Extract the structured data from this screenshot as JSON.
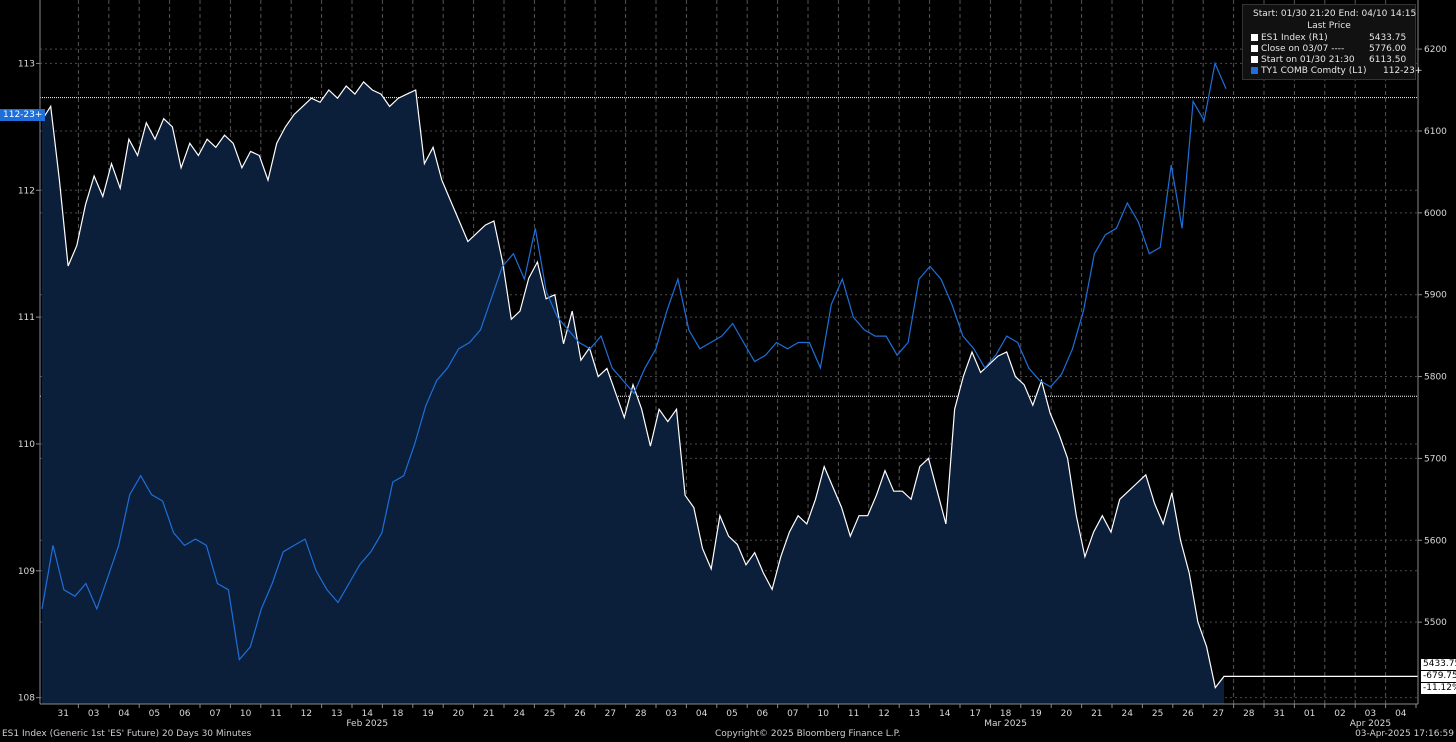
{
  "footer": {
    "left": "ES1 Index (Generic 1st 'ES' Future) 20 Days 30 Minutes",
    "center": "Copyright© 2025 Bloomberg Finance L.P.",
    "right": "03-Apr-2025 17:16:59"
  },
  "legend": {
    "header": "Start: 01/30 21:20 End: 04/10 14:15",
    "subheader": "Last Price",
    "rows": [
      {
        "label": "ES1 Index  (R1)",
        "value": "5433.75",
        "color": "#ffffff"
      },
      {
        "label": "Close on 03/07 ----",
        "value": "5776.00",
        "color": "#ffffff"
      },
      {
        "label": "Start on 01/30 21:30",
        "value": "6113.50",
        "color": "#ffffff"
      },
      {
        "label": "TY1 COMB Comdty  (L1)",
        "value": "112-23+",
        "color": "#1e6fd9"
      }
    ]
  },
  "tags": {
    "left_last": "112-23+",
    "right_last": "5433.75",
    "right_change": "-679.75",
    "right_pct": "-11.12%"
  },
  "colors": {
    "background": "#000000",
    "area": "#0b1e3a",
    "es_line": "#ffffff",
    "ty_line": "#1e6fd9",
    "grid": "#555555"
  },
  "chart_data": {
    "type": "line",
    "y_left_axis": {
      "ticks": [
        "108",
        "109",
        "110",
        "111",
        "112",
        "113"
      ],
      "range": [
        107.95,
        113.5
      ]
    },
    "y_right_axis": {
      "ticks": [
        "5500",
        "5600",
        "5700",
        "5800",
        "5900",
        "6000",
        "6100",
        "6200"
      ],
      "range": [
        5400,
        6260
      ]
    },
    "x_day_labels": [
      "31",
      "03",
      "04",
      "05",
      "06",
      "07",
      "10",
      "11",
      "12",
      "13",
      "14",
      "18",
      "19",
      "20",
      "21",
      "24",
      "25",
      "26",
      "27",
      "28",
      "03",
      "04",
      "05",
      "06",
      "07",
      "10",
      "11",
      "12",
      "13",
      "14",
      "17",
      "18",
      "19",
      "20",
      "21",
      "24",
      "25",
      "26",
      "27",
      "28",
      "31",
      "01",
      "02",
      "03",
      "04"
    ],
    "x_month_labels": [
      {
        "label": "Feb 2025",
        "after_day_index": 10
      },
      {
        "label": "Mar 2025",
        "after_day_index": 31
      },
      {
        "label": "Apr 2025",
        "after_day_index": 43
      }
    ],
    "reference_lines": [
      {
        "axis": "left",
        "value": "112-23+",
        "numeric": 112.73
      },
      {
        "axis": "right",
        "name": "Close on 03/07",
        "value": 5776.0
      }
    ],
    "series": [
      {
        "name": "ES1 Index",
        "axis": "right",
        "style": "area",
        "values": [
          6113.5,
          6130,
          6040,
          5935,
          5960,
          6010,
          6045,
          6020,
          6060,
          6030,
          6090,
          6070,
          6110,
          6090,
          6115,
          6105,
          6055,
          6085,
          6070,
          6090,
          6080,
          6095,
          6085,
          6055,
          6075,
          6070,
          6040,
          6085,
          6105,
          6120,
          6130,
          6140,
          6135,
          6150,
          6140,
          6155,
          6145,
          6160,
          6150,
          6145,
          6130,
          6140,
          6145,
          6150,
          6060,
          6080,
          6040,
          6015,
          5990,
          5965,
          5975,
          5985,
          5990,
          5940,
          5870,
          5880,
          5920,
          5940,
          5895,
          5900,
          5840,
          5880,
          5820,
          5835,
          5800,
          5810,
          5780,
          5750,
          5790,
          5760,
          5715,
          5760,
          5745,
          5760,
          5655,
          5640,
          5590,
          5565,
          5630,
          5605,
          5595,
          5570,
          5585,
          5560,
          5540,
          5580,
          5610,
          5630,
          5620,
          5650,
          5690,
          5665,
          5640,
          5605,
          5630,
          5630,
          5655,
          5685,
          5660,
          5660,
          5650,
          5690,
          5700,
          5660,
          5620,
          5760,
          5800,
          5830,
          5805,
          5815,
          5825,
          5830,
          5800,
          5790,
          5765,
          5795,
          5755,
          5730,
          5700,
          5630,
          5580,
          5610,
          5630,
          5610,
          5650,
          5660,
          5670,
          5680,
          5645,
          5620,
          5658,
          5600,
          5560,
          5500,
          5470,
          5420,
          5433.75
        ]
      },
      {
        "name": "TY1 COMB Comdty",
        "axis": "left",
        "style": "line",
        "values": [
          108.7,
          109.2,
          108.85,
          108.8,
          108.9,
          108.7,
          108.95,
          109.2,
          109.6,
          109.75,
          109.6,
          109.55,
          109.3,
          109.2,
          109.25,
          109.2,
          108.9,
          108.85,
          108.3,
          108.4,
          108.7,
          108.9,
          109.15,
          109.2,
          109.25,
          109.0,
          108.85,
          108.75,
          108.9,
          109.05,
          109.15,
          109.3,
          109.7,
          109.75,
          110.0,
          110.3,
          110.5,
          110.6,
          110.75,
          110.8,
          110.9,
          111.15,
          111.4,
          111.5,
          111.3,
          111.7,
          111.2,
          111.0,
          110.9,
          110.8,
          110.75,
          110.85,
          110.6,
          110.5,
          110.4,
          110.6,
          110.75,
          111.05,
          111.3,
          110.9,
          110.75,
          110.8,
          110.85,
          110.95,
          110.8,
          110.65,
          110.7,
          110.8,
          110.75,
          110.8,
          110.8,
          110.6,
          111.1,
          111.3,
          111.0,
          110.9,
          110.85,
          110.85,
          110.7,
          110.8,
          111.3,
          111.4,
          111.3,
          111.1,
          110.85,
          110.75,
          110.6,
          110.7,
          110.85,
          110.8,
          110.6,
          110.5,
          110.45,
          110.55,
          110.75,
          111.05,
          111.5,
          111.65,
          111.7,
          111.9,
          111.75,
          111.5,
          111.55,
          112.2,
          111.7,
          112.7,
          112.55,
          113.0,
          112.8
        ]
      }
    ]
  }
}
